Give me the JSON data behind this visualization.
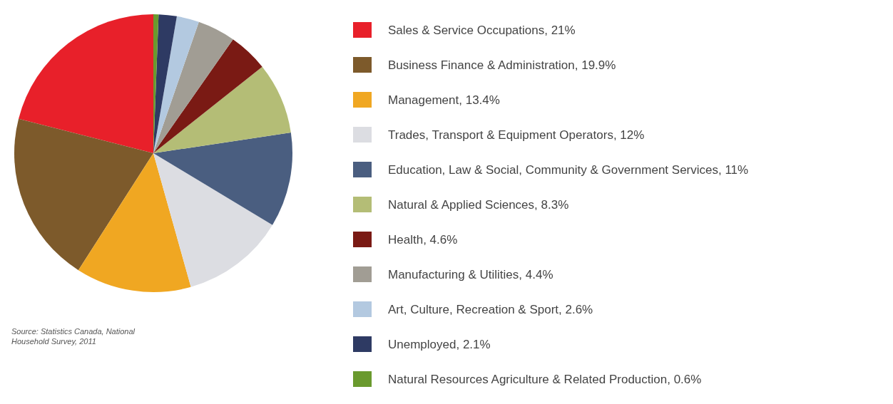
{
  "chart_data": {
    "type": "pie",
    "categories": [
      "Sales & Service Occupations, 21%",
      "Business Finance & Administration, 19.9%",
      "Management, 13.4%",
      "Trades, Transport & Equipment Operators, 12%",
      "Education, Law & Social, Community & Government Services, 11%",
      "Natural & Applied Sciences, 8.3%",
      "Health, 4.6%",
      "Manufacturing & Utilities, 4.4%",
      "Art, Culture, Recreation & Sport, 2.6%",
      "Unemployed, 2.1%",
      "Natural Resources Agriculture & Related Production, 0.6%"
    ],
    "values": [
      21,
      19.9,
      13.4,
      12,
      11,
      8.3,
      4.6,
      4.4,
      2.6,
      2.1,
      0.6
    ],
    "colors": [
      "#e8202a",
      "#7d5a2b",
      "#f0a722",
      "#dcdde2",
      "#4a5e80",
      "#b4bd76",
      "#7a1a14",
      "#a19d94",
      "#b3c9e0",
      "#2e3a63",
      "#6a9a2e"
    ],
    "legend": "right",
    "annotations": [
      "Source: Statistics Canada, National Household Survey, 2011"
    ]
  }
}
